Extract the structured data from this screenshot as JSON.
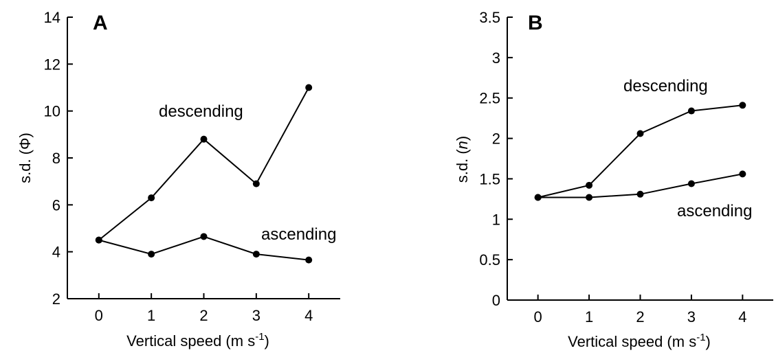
{
  "chart_data": [
    {
      "type": "line",
      "panel_label": "A",
      "xlabel": "Vertical speed (m s",
      "xlabel_sup": "-1",
      "xlabel_close": ")",
      "ylabel": "s.d. (Φ)",
      "x": [
        0,
        1,
        2,
        3,
        4
      ],
      "xticks": [
        "0",
        "1",
        "2",
        "3",
        "4"
      ],
      "yticks": [
        "2",
        "4",
        "6",
        "8",
        "10",
        "12",
        "14"
      ],
      "ytick_values": [
        2,
        4,
        6,
        8,
        10,
        12,
        14
      ],
      "xlim": [
        -0.6,
        4.6
      ],
      "ylim": [
        2,
        14
      ],
      "series": [
        {
          "name": "descending",
          "values": [
            4.5,
            6.3,
            8.8,
            6.9,
            11.0
          ]
        },
        {
          "name": "ascending",
          "values": [
            4.5,
            3.9,
            4.65,
            3.9,
            3.65
          ]
        }
      ],
      "grid": false
    },
    {
      "type": "line",
      "panel_label": "B",
      "xlabel": "Vertical speed (m s",
      "xlabel_sup": "-1",
      "xlabel_close": ")",
      "ylabel_prefix": "s.d. (",
      "ylabel_var": "n",
      "ylabel_suffix": ")",
      "x": [
        0,
        1,
        2,
        3,
        4
      ],
      "xticks": [
        "0",
        "1",
        "2",
        "3",
        "4"
      ],
      "yticks": [
        "0",
        "0.5",
        "1",
        "1.5",
        "2",
        "2.5",
        "3",
        "3.5"
      ],
      "ytick_values": [
        0,
        0.5,
        1,
        1.5,
        2,
        2.5,
        3,
        3.5
      ],
      "xlim": [
        -0.6,
        4.6
      ],
      "ylim": [
        0,
        3.5
      ],
      "series": [
        {
          "name": "descending",
          "values": [
            1.27,
            1.42,
            2.06,
            2.34,
            2.41
          ]
        },
        {
          "name": "ascending",
          "values": [
            1.27,
            1.27,
            1.31,
            1.44,
            1.56
          ]
        }
      ],
      "grid": false
    }
  ]
}
